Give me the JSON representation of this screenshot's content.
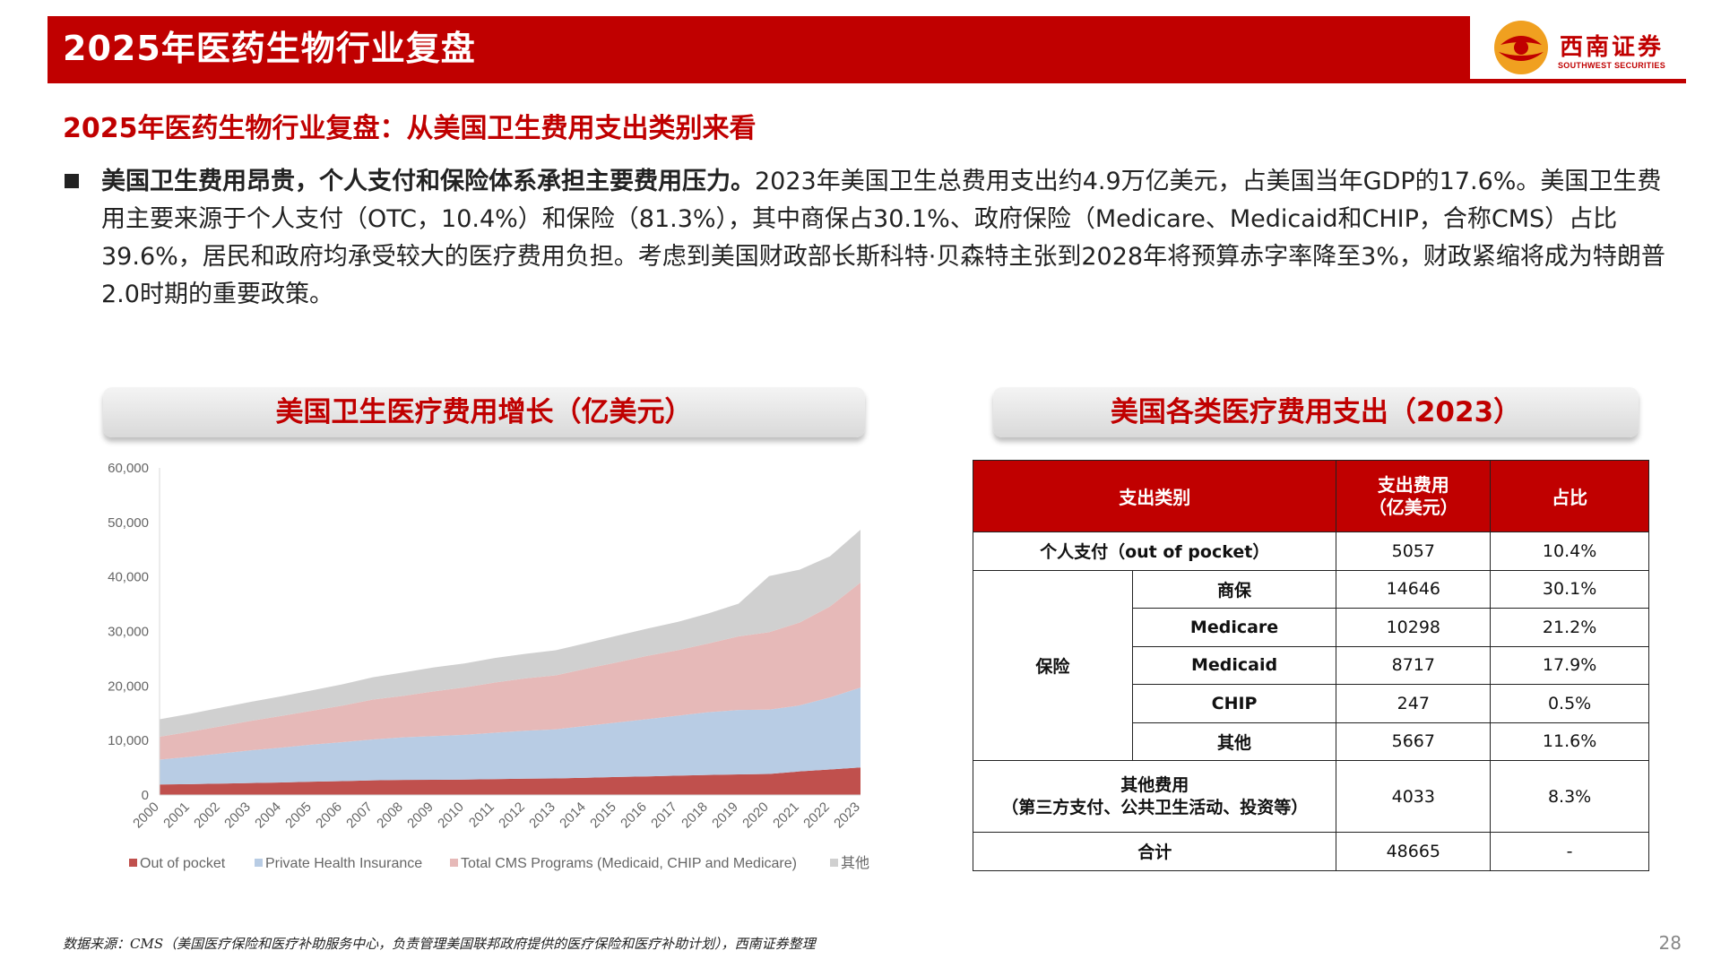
{
  "header": {
    "title": "2025年医药生物行业复盘",
    "logo_cn": "西南证券",
    "logo_en": "SOUTHWEST SECURITIES"
  },
  "subtitle": "2025年医药生物行业复盘：从美国卫生费用支出类别来看",
  "body": {
    "bold": "美国卫生费用昂贵，个人支付和保险体系承担主要费用压力。",
    "rest": "2023年美国卫生总费用支出约4.9万亿美元，占美国当年GDP的17.6%。美国卫生费用主要来源于个人支付（OTC，10.4%）和保险（81.3%），其中商保占30.1%、政府保险（Medicare、Medicaid和CHIP，合称CMS）占比39.6%，居民和政府均承受较大的医疗费用负担。考虑到美国财政部长斯科特·贝森特主张到2028年将预算赤字率降至3%，财政紧缩将成为特朗普2.0时期的重要政策。"
  },
  "left_panel_title": "美国卫生医疗费用增长（亿美元）",
  "right_panel_title": "美国各类医疗费用支出（2023）",
  "chart_data": {
    "type": "area",
    "stacked": true,
    "x": [
      "2000",
      "2001",
      "2002",
      "2003",
      "2004",
      "2005",
      "2006",
      "2007",
      "2008",
      "2009",
      "2010",
      "2011",
      "2012",
      "2013",
      "2014",
      "2015",
      "2016",
      "2017",
      "2018",
      "2019",
      "2020",
      "2021",
      "2022",
      "2023"
    ],
    "ylim": [
      0,
      60000
    ],
    "yticks": [
      0,
      10000,
      20000,
      30000,
      40000,
      50000,
      60000
    ],
    "ytick_labels": [
      "0",
      "10,000",
      "20,000",
      "30,000",
      "40,000",
      "50,000",
      "60,000"
    ],
    "grid": false,
    "legend_position": "bottom",
    "series": [
      {
        "name": "Out of pocket",
        "color": "#c0504d",
        "values": [
          1930,
          2000,
          2100,
          2200,
          2300,
          2450,
          2550,
          2700,
          2780,
          2800,
          2830,
          2920,
          3000,
          3050,
          3170,
          3300,
          3420,
          3550,
          3680,
          3790,
          3860,
          4330,
          4690,
          5057
        ]
      },
      {
        "name": "Private Health Insurance",
        "color": "#b8cce4",
        "values": [
          4560,
          5000,
          5500,
          6000,
          6400,
          6800,
          7150,
          7500,
          7800,
          8000,
          8200,
          8500,
          8800,
          9000,
          9500,
          10000,
          10500,
          11000,
          11500,
          11800,
          11800,
          12100,
          13200,
          14646
        ]
      },
      {
        "name": "Total CMS Programs (Medicaid, CHIP and Medicare)",
        "color": "#e6b9b8",
        "values": [
          4200,
          4600,
          5000,
          5400,
          5800,
          6200,
          6700,
          7300,
          7600,
          8200,
          8700,
          9200,
          9600,
          9900,
          10500,
          11000,
          11600,
          12000,
          12600,
          13500,
          14200,
          15200,
          16700,
          19262
        ]
      },
      {
        "name": "其他",
        "color": "#d0d0d0",
        "values": [
          3200,
          3300,
          3400,
          3500,
          3600,
          3750,
          3900,
          4100,
          4300,
          4400,
          4400,
          4500,
          4500,
          4600,
          4700,
          4900,
          5000,
          5200,
          5500,
          6000,
          10300,
          9700,
          9200,
          9700
        ]
      }
    ]
  },
  "table": {
    "headers": [
      "支出类别",
      "支出费用\n（亿美元）",
      "占比"
    ],
    "rows": {
      "oop": {
        "label": "个人支付（out of pocket）",
        "value": "5057",
        "pct": "10.4%"
      },
      "insurance_label": "保险",
      "insurance": [
        {
          "label": "商保",
          "value": "14646",
          "pct": "30.1%"
        },
        {
          "label": "Medicare",
          "value": "10298",
          "pct": "21.2%"
        },
        {
          "label": "Medicaid",
          "value": "8717",
          "pct": "17.9%"
        },
        {
          "label": "CHIP",
          "value": "247",
          "pct": "0.5%"
        },
        {
          "label": "其他",
          "value": "5667",
          "pct": "11.6%"
        }
      ],
      "other": {
        "label_line1": "其他费用",
        "label_line2": "（第三方支付、公共卫生活动、投资等）",
        "value": "4033",
        "pct": "8.3%"
      },
      "total": {
        "label": "合计",
        "value": "48665",
        "pct": "-"
      }
    }
  },
  "footer": "数据来源：CMS（美国医疗保险和医疗补助服务中心，负责管理美国联邦政府提供的医疗保险和医疗补助计划），西南证券整理",
  "page_number": "28",
  "colors": {
    "brand_red": "#c00000"
  }
}
